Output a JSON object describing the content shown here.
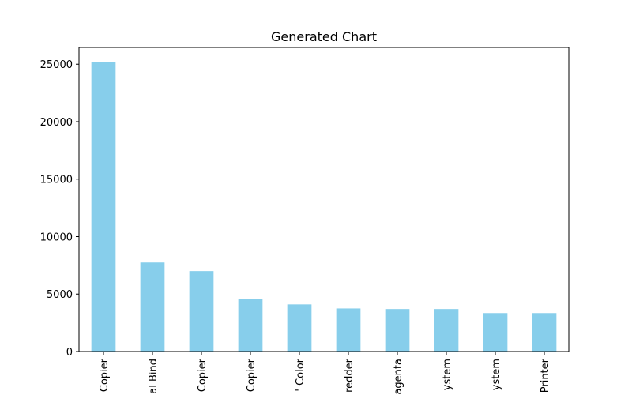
{
  "chart_data": {
    "type": "bar",
    "title": "Generated Chart",
    "xlabel": "",
    "ylabel": "",
    "categories": [
      "Copier",
      "al Bind",
      "Copier",
      "Copier",
      "' Color",
      "redder",
      "agenta",
      "ystem",
      "ystem",
      "Printer"
    ],
    "values": [
      25200,
      7750,
      7000,
      4600,
      4100,
      3750,
      3700,
      3700,
      3350,
      3350
    ],
    "yticks": [
      "0",
      "5000",
      "10000",
      "15000",
      "20000",
      "25000"
    ],
    "ylim": [
      0,
      26460
    ],
    "bar_color": "#87ceeb",
    "grid": false,
    "legend": "none"
  }
}
